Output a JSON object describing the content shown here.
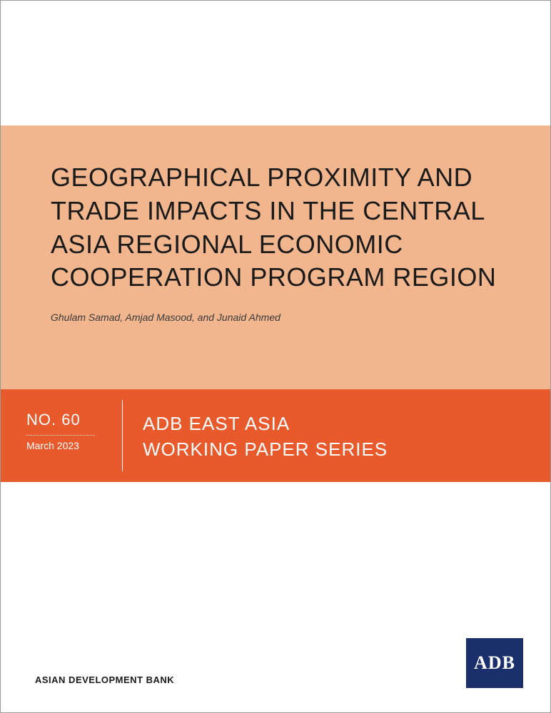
{
  "colors": {
    "title_block_bg": "#f2b68f",
    "series_band_bg": "#e8592c",
    "logo_bg": "#1a2f6b",
    "title_text": "#1a1a1a",
    "authors_text": "#3a3a3a",
    "band_text": "#ffffff",
    "footer_text": "#1a1a1a"
  },
  "title": "GEOGRAPHICAL PROXIMITY AND TRADE IMPACTS IN THE CENTRAL ASIA REGIONAL ECONOMIC COOPERATION PROGRAM REGION",
  "authors": "Ghulam Samad, Amjad Masood, and Junaid Ahmed",
  "issue": {
    "number": "NO. 60",
    "date": "March 2023"
  },
  "series_line1": "ADB EAST ASIA",
  "series_line2": "WORKING PAPER SERIES",
  "footer_org": "ASIAN DEVELOPMENT BANK",
  "logo_text": "ADB"
}
